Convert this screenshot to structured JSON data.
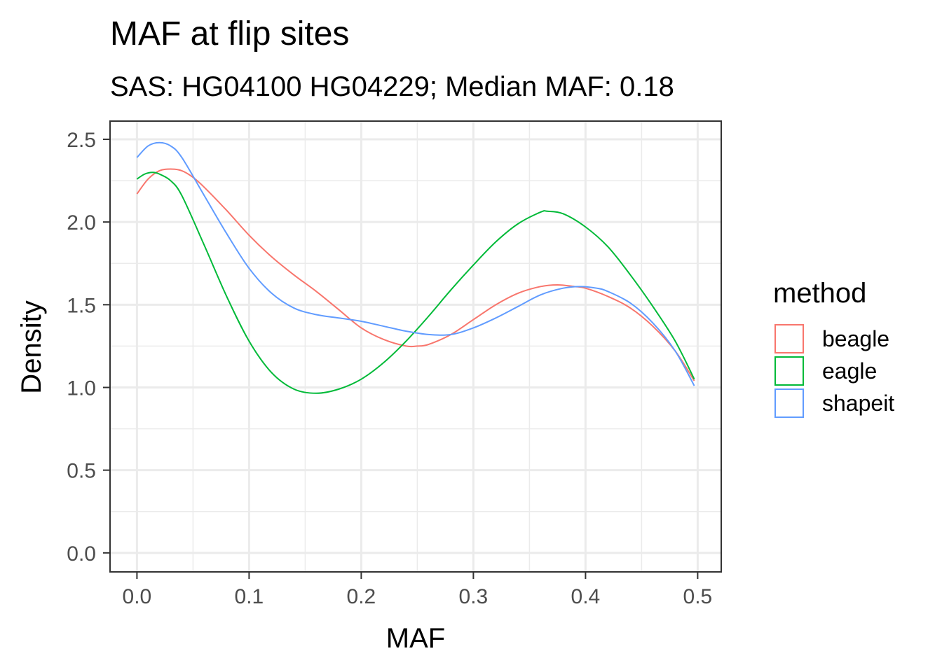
{
  "chart_data": {
    "type": "line",
    "title": "MAF at flip sites",
    "subtitle": "SAS: HG04100 HG04229; Median MAF: 0.18",
    "xlabel": "MAF",
    "ylabel": "Density",
    "xlim": [
      -0.024,
      0.521
    ],
    "ylim": [
      -0.115,
      2.61
    ],
    "x_ticks": [
      0.0,
      0.1,
      0.2,
      0.3,
      0.4,
      0.5
    ],
    "x_tick_labels": [
      "0.0",
      "0.1",
      "0.2",
      "0.3",
      "0.4",
      "0.5"
    ],
    "y_ticks": [
      0.0,
      0.5,
      1.0,
      1.5,
      2.0,
      2.5
    ],
    "y_tick_labels": [
      "0.0",
      "0.5",
      "1.0",
      "1.5",
      "2.0",
      "2.5"
    ],
    "grid": true,
    "legend": {
      "title": "method",
      "position": "right"
    },
    "series": [
      {
        "name": "beagle",
        "color": "#F8766D",
        "x": [
          0.0,
          0.01,
          0.02,
          0.03,
          0.04,
          0.05,
          0.06,
          0.08,
          0.1,
          0.12,
          0.14,
          0.16,
          0.18,
          0.2,
          0.22,
          0.24,
          0.25,
          0.26,
          0.28,
          0.3,
          0.32,
          0.34,
          0.36,
          0.375,
          0.39,
          0.4,
          0.42,
          0.44,
          0.46,
          0.48,
          0.497
        ],
        "y": [
          2.17,
          2.26,
          2.31,
          2.32,
          2.31,
          2.27,
          2.21,
          2.07,
          1.92,
          1.79,
          1.68,
          1.58,
          1.47,
          1.36,
          1.29,
          1.25,
          1.25,
          1.26,
          1.32,
          1.41,
          1.5,
          1.57,
          1.61,
          1.62,
          1.61,
          1.6,
          1.55,
          1.48,
          1.37,
          1.22,
          1.04
        ]
      },
      {
        "name": "eagle",
        "color": "#00BA38",
        "x": [
          0.0,
          0.007,
          0.014,
          0.02,
          0.03,
          0.04,
          0.06,
          0.08,
          0.1,
          0.12,
          0.14,
          0.16,
          0.18,
          0.2,
          0.22,
          0.24,
          0.26,
          0.28,
          0.3,
          0.32,
          0.34,
          0.36,
          0.366,
          0.38,
          0.4,
          0.42,
          0.44,
          0.46,
          0.48,
          0.497
        ],
        "y": [
          2.26,
          2.29,
          2.3,
          2.29,
          2.25,
          2.16,
          1.86,
          1.55,
          1.28,
          1.09,
          0.99,
          0.965,
          0.99,
          1.05,
          1.15,
          1.28,
          1.43,
          1.59,
          1.74,
          1.88,
          1.99,
          2.06,
          2.065,
          2.05,
          1.97,
          1.85,
          1.68,
          1.49,
          1.28,
          1.05
        ]
      },
      {
        "name": "shapeit",
        "color": "#619CFF",
        "x": [
          0.0,
          0.01,
          0.02,
          0.03,
          0.04,
          0.06,
          0.08,
          0.1,
          0.12,
          0.14,
          0.16,
          0.18,
          0.2,
          0.22,
          0.24,
          0.26,
          0.28,
          0.3,
          0.32,
          0.34,
          0.36,
          0.38,
          0.395,
          0.41,
          0.42,
          0.44,
          0.46,
          0.48,
          0.497
        ],
        "y": [
          2.39,
          2.46,
          2.48,
          2.46,
          2.39,
          2.16,
          1.93,
          1.72,
          1.57,
          1.48,
          1.44,
          1.42,
          1.4,
          1.37,
          1.34,
          1.32,
          1.32,
          1.36,
          1.42,
          1.49,
          1.56,
          1.6,
          1.61,
          1.6,
          1.58,
          1.51,
          1.39,
          1.22,
          1.01
        ]
      }
    ]
  }
}
